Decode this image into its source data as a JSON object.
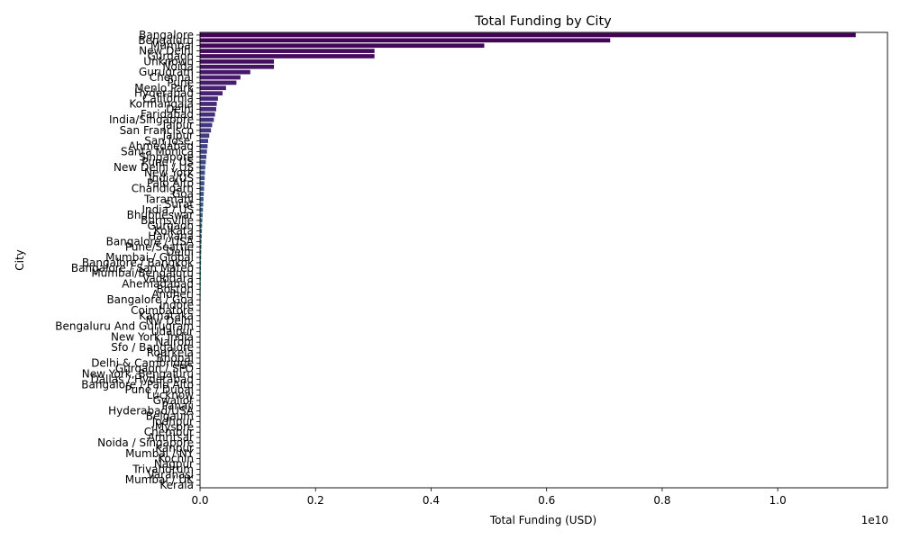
{
  "chart_data": {
    "type": "bar",
    "orientation": "horizontal",
    "title": "Total Funding by City",
    "xlabel": "Total Funding (USD)",
    "ylabel": "City",
    "x_offset_label": "1e10",
    "xlim": [
      0,
      11.9
    ],
    "x_ticks": [
      0.0,
      0.2,
      0.4,
      0.6,
      0.8,
      1.0
    ],
    "x_tick_labels": [
      "0.0",
      "0.2",
      "0.4",
      "0.6",
      "0.8",
      "1.0"
    ],
    "x_unit_scale": 10,
    "grid": false,
    "palette": "viridis",
    "categories": [
      "Bangalore",
      "Bengaluru",
      "Mumbai",
      "New Delhi",
      "Gurgaon",
      "Unknown",
      "Noida",
      "Gurugram",
      "Chennai",
      "Pune",
      "Menlo Park",
      "Hyderabad",
      "California",
      "Kormangala",
      "Delhi",
      "Faridabad",
      "India/Singapore",
      "Jaipur",
      "San Francisco",
      "Jaipur",
      "San Jose,",
      "Ahmedabad",
      "Santa Monica",
      "Singapore",
      "Pune / US",
      "New Delhi / US",
      "New York",
      "India/US",
      "Palo Alto",
      "Chandigarh",
      "Goa",
      "Taramani",
      "Surat",
      "India / US",
      "Bhubneswar",
      "Burnsville",
      "Gurgaon",
      "Kolkata",
      "Haryana",
      "Bangalore / USA",
      "Pune/Seattle",
      "Delhi",
      "Mumbai / Global",
      "Bangalore / Bangkok",
      "Bangalore / San Mateo",
      "Mumbai/Bengaluru",
      "Vadodara",
      "Ahemadabad",
      "Boston",
      "Andheri",
      "Bangalore / Goa",
      "Indore",
      "Coimbatore",
      "Karnataka",
      "Nw Delhi",
      "Bengaluru And Gurugram",
      "Udaipur",
      "New York, India",
      "Nairobi",
      "Sfo / Bangalore",
      "Rourkela",
      "Bhopal",
      "Delhi & Cambridge",
      "Gurgaon / SFO",
      "New York, Bengaluru",
      "Dallas / Hyderabad",
      "Bangalore / Palo Alto",
      "Pune / Dubai",
      "Lucknow",
      "Gwalior",
      "Panaji",
      "Hyderabad/USA",
      "Belgaum",
      "Jodhpur",
      "Mysore",
      "Chembur",
      "Amritsar",
      "Noida / Singapore",
      "Kanpur",
      "Mumbai / NY",
      "Kochin",
      "Nagpur",
      "Trivandrum",
      "Varanasi",
      "Mumbai / UK",
      "Kerala"
    ],
    "values": [
      11.35,
      7.1,
      4.92,
      3.02,
      3.02,
      1.28,
      1.28,
      0.87,
      0.7,
      0.63,
      0.45,
      0.39,
      0.31,
      0.29,
      0.28,
      0.26,
      0.24,
      0.21,
      0.19,
      0.16,
      0.14,
      0.13,
      0.12,
      0.11,
      0.1,
      0.09,
      0.085,
      0.08,
      0.075,
      0.07,
      0.065,
      0.06,
      0.055,
      0.05,
      0.045,
      0.04,
      0.036,
      0.033,
      0.03,
      0.027,
      0.025,
      0.022,
      0.02,
      0.018,
      0.016,
      0.015,
      0.014,
      0.013,
      0.012,
      0.011,
      0.01,
      0.009,
      0.009,
      0.008,
      0.008,
      0.007,
      0.007,
      0.006,
      0.006,
      0.005,
      0.005,
      0.005,
      0.004,
      0.004,
      0.004,
      0.003,
      0.003,
      0.003,
      0.003,
      0.002,
      0.002,
      0.002,
      0.002,
      0.002,
      0.001,
      0.001,
      0.001,
      0.001,
      0.001,
      0.001,
      0.001,
      0.001,
      0.0005,
      0.0005,
      0.0005,
      0.0005
    ]
  }
}
